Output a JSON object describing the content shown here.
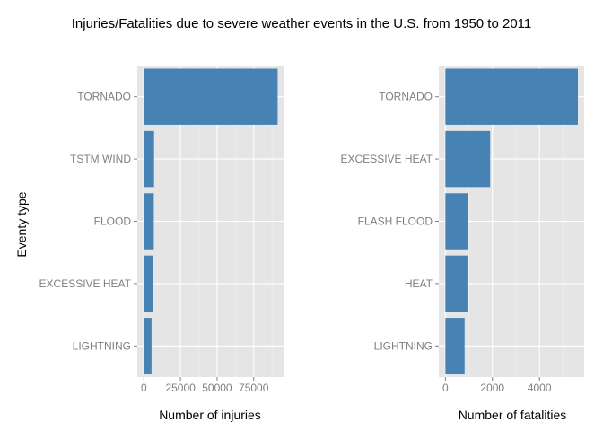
{
  "page_title": "Injuries/Fatalities due to severe weather events in the U.S. from 1950 to 2011",
  "shared_ylabel": "Eventy type",
  "chart_data": [
    {
      "type": "bar",
      "orientation": "horizontal",
      "categories": [
        "TORNADO",
        "TSTM WIND",
        "FLOOD",
        "EXCESSIVE HEAT",
        "LIGHTNING"
      ],
      "values": [
        91346,
        6957,
        6789,
        6525,
        5230
      ],
      "xlabel": "Number of injuries",
      "xlim": [
        -4500,
        96000
      ],
      "xticks": [
        0,
        25000,
        50000,
        75000
      ],
      "tick_labels": [
        "0",
        "25000",
        "50000",
        "75000"
      ],
      "grid": true,
      "bar_color": "#4682B4",
      "panel_color": "#E5E5E5"
    },
    {
      "type": "bar",
      "orientation": "horizontal",
      "categories": [
        "TORNADO",
        "EXCESSIVE HEAT",
        "FLASH FLOOD",
        "HEAT",
        "LIGHTNING"
      ],
      "values": [
        5633,
        1903,
        978,
        937,
        816
      ],
      "xlabel": "Number of fatalities",
      "xlim": [
        -280,
        5900
      ],
      "xticks": [
        0,
        2000,
        4000
      ],
      "tick_labels": [
        "0",
        "2000",
        "4000"
      ],
      "grid": true,
      "bar_color": "#4682B4",
      "panel_color": "#E5E5E5"
    }
  ]
}
